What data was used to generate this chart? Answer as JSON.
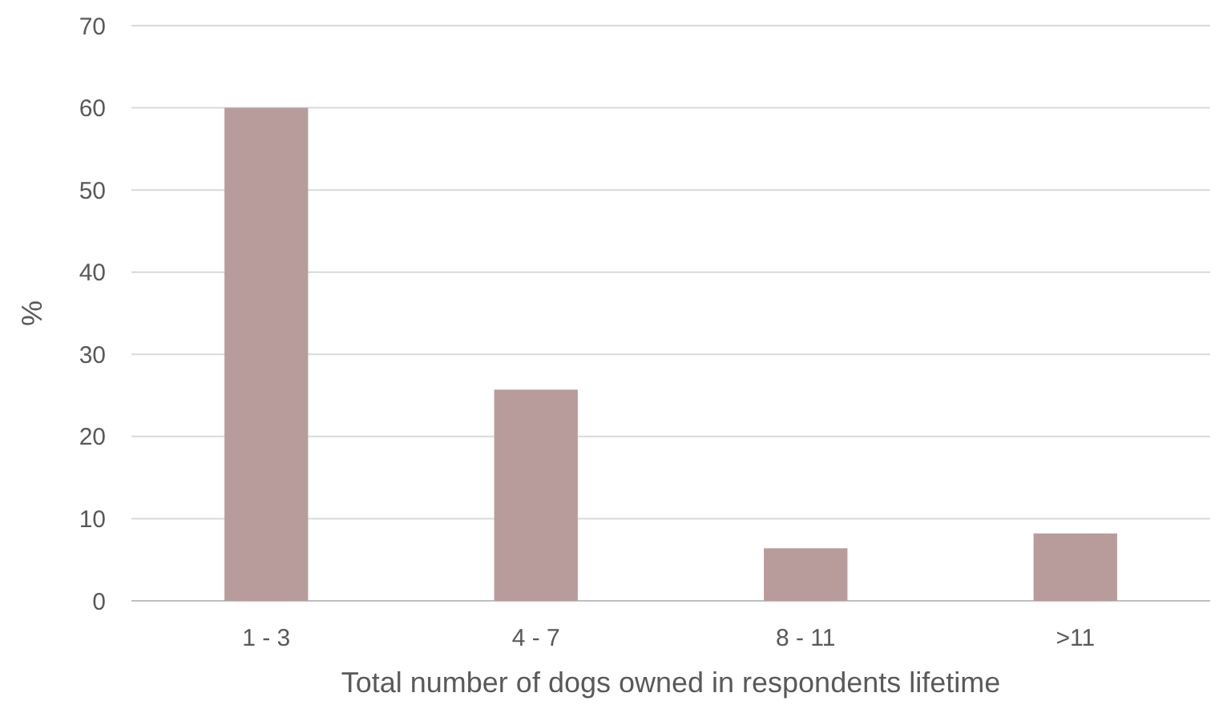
{
  "chart_data": {
    "type": "bar",
    "xlabel": "Total number  of dogs owned in respondents lifetime",
    "ylabel": "%",
    "categories": [
      "1 - 3",
      "4 - 7",
      "8 - 11",
      ">11"
    ],
    "values": [
      60,
      25.7,
      6.4,
      8.2
    ],
    "color": "#b89c9c",
    "ylim": [
      0,
      70
    ],
    "yticks": [
      0,
      10,
      20,
      30,
      40,
      50,
      60,
      70
    ],
    "grid": "y"
  }
}
